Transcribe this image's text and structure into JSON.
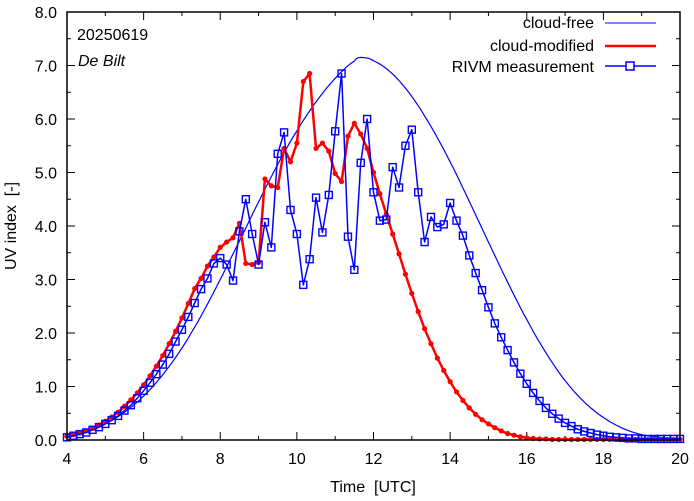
{
  "chart_data": {
    "type": "line",
    "xlabel": "Time  [UTC]",
    "ylabel": "UV index  [-]",
    "xlim": [
      4,
      20
    ],
    "ylim": [
      0,
      8
    ],
    "xticks": [
      4,
      6,
      8,
      10,
      12,
      14,
      16,
      18,
      20
    ],
    "xtick_labels": [
      "4",
      "6",
      "8",
      "10",
      "12",
      "14",
      "16",
      "18",
      "20"
    ],
    "yticks": [
      0,
      1,
      2,
      3,
      4,
      5,
      6,
      7,
      8
    ],
    "ytick_labels": [
      "0.0",
      "1.0",
      "2.0",
      "3.0",
      "4.0",
      "5.0",
      "6.0",
      "7.0",
      "8.0"
    ],
    "annotations": {
      "date": "20250619",
      "location": "De Bilt"
    },
    "legend_position": "top-right",
    "colors": {
      "cloud_free": "#0000ff",
      "cloud_modified": "#ff0000",
      "measurement": "#0000ff"
    },
    "series": [
      {
        "name": "cloud-free",
        "style": "line",
        "peak_time": 11.65,
        "peak_value": 7.15,
        "x": [
          4.0,
          4.5,
          5.0,
          5.5,
          6.0,
          6.5,
          7.0,
          7.5,
          8.0,
          8.5,
          9.0,
          9.5,
          10.0,
          10.5,
          11.0,
          11.5,
          11.65,
          12.0,
          12.5,
          13.0,
          13.5,
          14.0,
          14.5,
          15.0,
          15.5,
          16.0,
          16.5,
          17.0,
          17.5,
          18.0,
          18.5,
          19.0,
          19.5,
          20.0
        ],
        "values": [
          0.07,
          0.16,
          0.3,
          0.52,
          0.82,
          1.22,
          1.72,
          2.32,
          3.0,
          3.72,
          4.45,
          5.15,
          5.78,
          6.32,
          6.76,
          7.08,
          7.15,
          7.09,
          6.84,
          6.42,
          5.86,
          5.2,
          4.46,
          3.7,
          2.95,
          2.25,
          1.63,
          1.11,
          0.71,
          0.42,
          0.22,
          0.1,
          0.05,
          0.02
        ]
      },
      {
        "name": "cloud-modified",
        "style": "line+dot",
        "x": [
          4.0,
          4.1667,
          4.3333,
          4.5,
          4.6667,
          4.8333,
          5.0,
          5.1667,
          5.3333,
          5.5,
          5.6667,
          5.8333,
          6.0,
          6.1667,
          6.3333,
          6.5,
          6.6667,
          6.8333,
          7.0,
          7.1667,
          7.3333,
          7.5,
          7.6667,
          7.8333,
          8.0,
          8.1667,
          8.3333,
          8.5,
          8.6667,
          8.8333,
          9.0,
          9.1667,
          9.3333,
          9.5,
          9.6667,
          9.8333,
          10.0,
          10.1667,
          10.3333,
          10.5,
          10.6667,
          10.8333,
          11.0,
          11.1667,
          11.3333,
          11.5,
          11.6667,
          11.8333,
          12.0,
          12.1667,
          12.3333,
          12.5,
          12.6667,
          12.8333,
          13.0,
          13.1667,
          13.3333,
          13.5,
          13.6667,
          13.8333,
          14.0,
          14.1667,
          14.3333,
          14.5,
          14.6667,
          14.8333,
          15.0,
          15.1667,
          15.3333,
          15.5,
          15.6667,
          15.8333,
          16.0,
          16.1667,
          16.3333,
          16.5,
          16.6667,
          16.8333,
          17.0,
          17.1667,
          17.3333,
          17.5,
          17.6667,
          17.8333,
          18.0,
          18.1667,
          18.3333,
          18.5,
          18.6667,
          18.8333,
          19.0,
          19.1667,
          19.3333,
          19.5,
          19.6667,
          19.8333,
          20.0
        ],
        "values": [
          0.07,
          0.1,
          0.13,
          0.17,
          0.22,
          0.28,
          0.35,
          0.43,
          0.52,
          0.63,
          0.75,
          0.88,
          1.03,
          1.2,
          1.38,
          1.58,
          1.8,
          2.03,
          2.28,
          2.55,
          2.83,
          3.02,
          3.25,
          3.42,
          3.6,
          3.7,
          3.78,
          4.05,
          3.3,
          3.28,
          3.32,
          4.88,
          4.75,
          4.72,
          5.45,
          5.2,
          5.55,
          6.7,
          6.85,
          5.45,
          5.55,
          5.4,
          4.98,
          4.83,
          5.68,
          5.92,
          5.72,
          5.45,
          5.0,
          4.6,
          4.22,
          3.85,
          3.48,
          3.1,
          2.74,
          2.4,
          2.08,
          1.8,
          1.53,
          1.3,
          1.09,
          0.9,
          0.74,
          0.6,
          0.48,
          0.38,
          0.3,
          0.23,
          0.17,
          0.12,
          0.09,
          0.06,
          0.04,
          0.03,
          0.02,
          0.02,
          0.01,
          0.01,
          0.01,
          0.01,
          0.01,
          0.01,
          0.01,
          0.01,
          0.01,
          0.01,
          0.01,
          0.01,
          0.01,
          0.01,
          0.01,
          0.01,
          0.01,
          0.01,
          0.01,
          0.01,
          0.01
        ]
      },
      {
        "name": "RIVM measurement",
        "style": "line+square",
        "values": [
          0.05,
          0.08,
          0.11,
          0.14,
          0.19,
          0.24,
          0.3,
          0.37,
          0.45,
          0.55,
          0.65,
          0.78,
          0.92,
          1.07,
          1.23,
          1.41,
          1.61,
          1.84,
          2.06,
          2.3,
          2.56,
          2.82,
          3.02,
          3.3,
          3.4,
          3.28,
          2.98,
          3.9,
          4.5,
          3.85,
          3.28,
          4.07,
          3.6,
          5.35,
          5.75,
          4.3,
          3.85,
          2.9,
          3.38,
          4.53,
          3.88,
          4.58,
          5.77,
          6.85,
          3.8,
          3.18,
          5.18,
          6.0,
          4.63,
          4.1,
          4.12,
          5.1,
          4.72,
          5.5,
          5.8,
          4.63,
          3.7,
          4.17,
          3.98,
          4.03,
          4.43,
          4.1,
          3.82,
          3.45,
          3.12,
          2.8,
          2.48,
          2.18,
          1.92,
          1.68,
          1.45,
          1.24,
          1.05,
          0.88,
          0.73,
          0.6,
          0.49,
          0.4,
          0.32,
          0.26,
          0.2,
          0.16,
          0.13,
          0.1,
          0.08,
          0.06,
          0.05,
          0.04,
          0.03,
          0.03,
          0.02,
          0.02,
          0.02,
          0.02,
          0.02,
          0.02,
          0.02
        ]
      }
    ]
  }
}
